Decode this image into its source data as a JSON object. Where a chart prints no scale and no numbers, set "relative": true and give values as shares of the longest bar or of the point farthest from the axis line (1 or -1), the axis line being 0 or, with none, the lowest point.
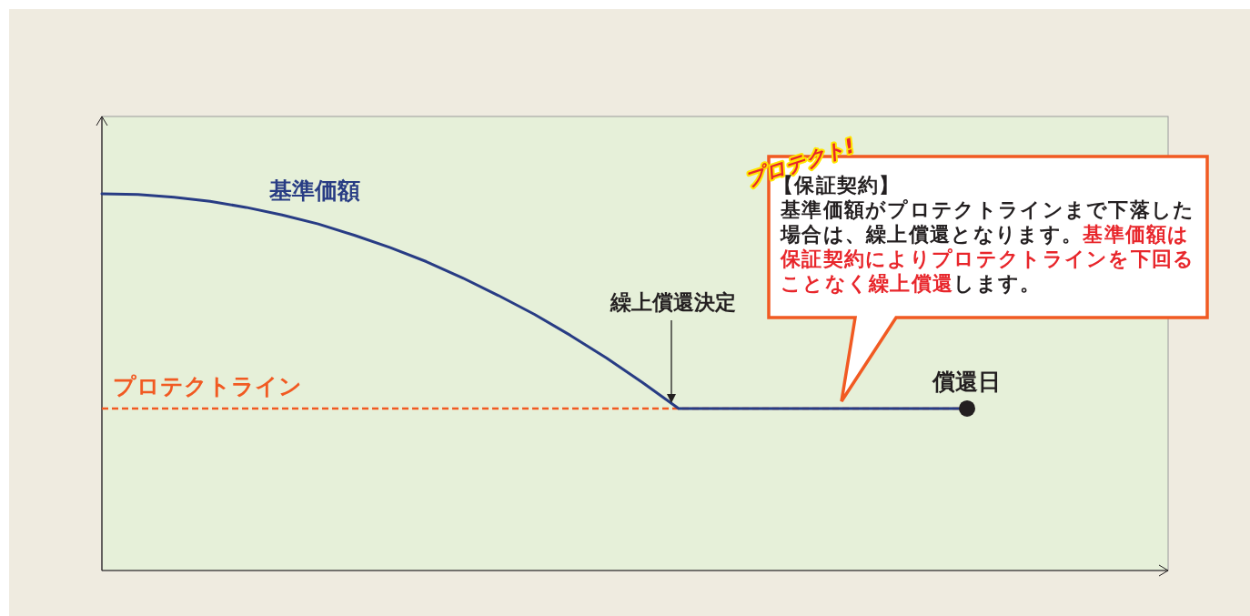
{
  "chart_data": {
    "type": "line",
    "relative": true,
    "categories": [
      null,
      null,
      null,
      null,
      null,
      null,
      null,
      null,
      null,
      null,
      null,
      null,
      null,
      null,
      null,
      null,
      null,
      null,
      null,
      null,
      null,
      null,
      null,
      null,
      null
    ],
    "series": [
      {
        "name": "基準価額",
        "color": "#283c84",
        "line_style": "solid",
        "values": [
          1.0,
          0.998,
          0.991,
          0.98,
          0.964,
          0.944,
          0.92,
          0.89,
          0.857,
          0.82,
          0.777,
          0.73,
          0.68,
          0.624,
          0.564,
          0.499,
          0.43,
          0.43,
          0.43,
          0.43,
          0.43,
          0.43,
          0.43,
          0.43,
          0.43
        ]
      }
    ],
    "ref_lines": [
      {
        "axis": "y",
        "value": 0.43,
        "label": "プロテクトライン",
        "color": "#f15a22",
        "line_style": "dashed"
      }
    ],
    "annotations": [
      "繰上償還決定",
      "償還日",
      "プロテクト!",
      "【保証契約】",
      "基準価額がプロテクトラインまで下落した場合は、繰上償還となります。",
      "基準価額は保証契約によりプロテクトラインを下回ることなく繰上償還",
      "します。"
    ]
  }
}
